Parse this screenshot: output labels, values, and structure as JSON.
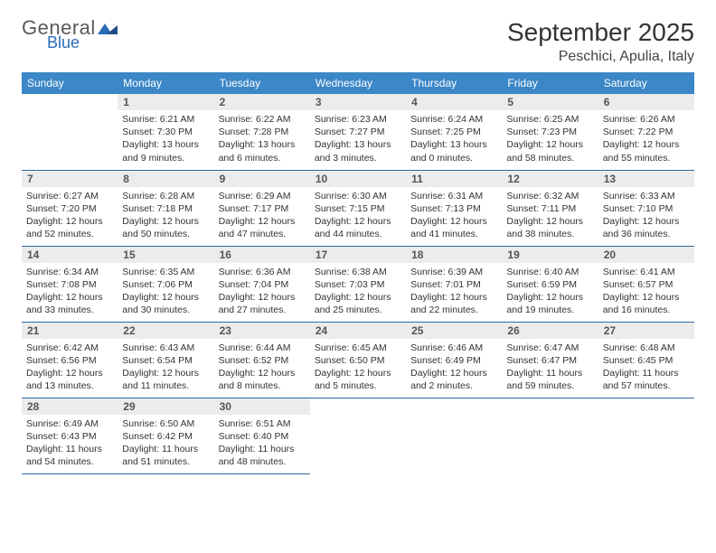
{
  "brand": {
    "name_top": "General",
    "name_bottom": "Blue"
  },
  "title": "September 2025",
  "location": "Peschici, Apulia, Italy",
  "colors": {
    "header_bg": "#3c87c7",
    "header_text": "#ffffff",
    "row_divider": "#2f6aa3",
    "daynum_bg": "#ececec",
    "logo_blue": "#2a6db8",
    "text": "#333333"
  },
  "weekdays": [
    "Sunday",
    "Monday",
    "Tuesday",
    "Wednesday",
    "Thursday",
    "Friday",
    "Saturday"
  ],
  "grid": [
    [
      {
        "blank": true
      },
      {
        "n": "1",
        "sunrise": "6:21 AM",
        "sunset": "7:30 PM",
        "dl1": "Daylight: 13 hours",
        "dl2": "and 9 minutes."
      },
      {
        "n": "2",
        "sunrise": "6:22 AM",
        "sunset": "7:28 PM",
        "dl1": "Daylight: 13 hours",
        "dl2": "and 6 minutes."
      },
      {
        "n": "3",
        "sunrise": "6:23 AM",
        "sunset": "7:27 PM",
        "dl1": "Daylight: 13 hours",
        "dl2": "and 3 minutes."
      },
      {
        "n": "4",
        "sunrise": "6:24 AM",
        "sunset": "7:25 PM",
        "dl1": "Daylight: 13 hours",
        "dl2": "and 0 minutes."
      },
      {
        "n": "5",
        "sunrise": "6:25 AM",
        "sunset": "7:23 PM",
        "dl1": "Daylight: 12 hours",
        "dl2": "and 58 minutes."
      },
      {
        "n": "6",
        "sunrise": "6:26 AM",
        "sunset": "7:22 PM",
        "dl1": "Daylight: 12 hours",
        "dl2": "and 55 minutes."
      }
    ],
    [
      {
        "n": "7",
        "sunrise": "6:27 AM",
        "sunset": "7:20 PM",
        "dl1": "Daylight: 12 hours",
        "dl2": "and 52 minutes."
      },
      {
        "n": "8",
        "sunrise": "6:28 AM",
        "sunset": "7:18 PM",
        "dl1": "Daylight: 12 hours",
        "dl2": "and 50 minutes."
      },
      {
        "n": "9",
        "sunrise": "6:29 AM",
        "sunset": "7:17 PM",
        "dl1": "Daylight: 12 hours",
        "dl2": "and 47 minutes."
      },
      {
        "n": "10",
        "sunrise": "6:30 AM",
        "sunset": "7:15 PM",
        "dl1": "Daylight: 12 hours",
        "dl2": "and 44 minutes."
      },
      {
        "n": "11",
        "sunrise": "6:31 AM",
        "sunset": "7:13 PM",
        "dl1": "Daylight: 12 hours",
        "dl2": "and 41 minutes."
      },
      {
        "n": "12",
        "sunrise": "6:32 AM",
        "sunset": "7:11 PM",
        "dl1": "Daylight: 12 hours",
        "dl2": "and 38 minutes."
      },
      {
        "n": "13",
        "sunrise": "6:33 AM",
        "sunset": "7:10 PM",
        "dl1": "Daylight: 12 hours",
        "dl2": "and 36 minutes."
      }
    ],
    [
      {
        "n": "14",
        "sunrise": "6:34 AM",
        "sunset": "7:08 PM",
        "dl1": "Daylight: 12 hours",
        "dl2": "and 33 minutes."
      },
      {
        "n": "15",
        "sunrise": "6:35 AM",
        "sunset": "7:06 PM",
        "dl1": "Daylight: 12 hours",
        "dl2": "and 30 minutes."
      },
      {
        "n": "16",
        "sunrise": "6:36 AM",
        "sunset": "7:04 PM",
        "dl1": "Daylight: 12 hours",
        "dl2": "and 27 minutes."
      },
      {
        "n": "17",
        "sunrise": "6:38 AM",
        "sunset": "7:03 PM",
        "dl1": "Daylight: 12 hours",
        "dl2": "and 25 minutes."
      },
      {
        "n": "18",
        "sunrise": "6:39 AM",
        "sunset": "7:01 PM",
        "dl1": "Daylight: 12 hours",
        "dl2": "and 22 minutes."
      },
      {
        "n": "19",
        "sunrise": "6:40 AM",
        "sunset": "6:59 PM",
        "dl1": "Daylight: 12 hours",
        "dl2": "and 19 minutes."
      },
      {
        "n": "20",
        "sunrise": "6:41 AM",
        "sunset": "6:57 PM",
        "dl1": "Daylight: 12 hours",
        "dl2": "and 16 minutes."
      }
    ],
    [
      {
        "n": "21",
        "sunrise": "6:42 AM",
        "sunset": "6:56 PM",
        "dl1": "Daylight: 12 hours",
        "dl2": "and 13 minutes."
      },
      {
        "n": "22",
        "sunrise": "6:43 AM",
        "sunset": "6:54 PM",
        "dl1": "Daylight: 12 hours",
        "dl2": "and 11 minutes."
      },
      {
        "n": "23",
        "sunrise": "6:44 AM",
        "sunset": "6:52 PM",
        "dl1": "Daylight: 12 hours",
        "dl2": "and 8 minutes."
      },
      {
        "n": "24",
        "sunrise": "6:45 AM",
        "sunset": "6:50 PM",
        "dl1": "Daylight: 12 hours",
        "dl2": "and 5 minutes."
      },
      {
        "n": "25",
        "sunrise": "6:46 AM",
        "sunset": "6:49 PM",
        "dl1": "Daylight: 12 hours",
        "dl2": "and 2 minutes."
      },
      {
        "n": "26",
        "sunrise": "6:47 AM",
        "sunset": "6:47 PM",
        "dl1": "Daylight: 11 hours",
        "dl2": "and 59 minutes."
      },
      {
        "n": "27",
        "sunrise": "6:48 AM",
        "sunset": "6:45 PM",
        "dl1": "Daylight: 11 hours",
        "dl2": "and 57 minutes."
      }
    ],
    [
      {
        "n": "28",
        "sunrise": "6:49 AM",
        "sunset": "6:43 PM",
        "dl1": "Daylight: 11 hours",
        "dl2": "and 54 minutes."
      },
      {
        "n": "29",
        "sunrise": "6:50 AM",
        "sunset": "6:42 PM",
        "dl1": "Daylight: 11 hours",
        "dl2": "and 51 minutes."
      },
      {
        "n": "30",
        "sunrise": "6:51 AM",
        "sunset": "6:40 PM",
        "dl1": "Daylight: 11 hours",
        "dl2": "and 48 minutes."
      },
      {
        "blank": true,
        "trailing": true
      },
      {
        "blank": true,
        "trailing": true
      },
      {
        "blank": true,
        "trailing": true
      },
      {
        "blank": true,
        "trailing": true
      }
    ]
  ],
  "labels": {
    "sunrise": "Sunrise:",
    "sunset": "Sunset:"
  }
}
